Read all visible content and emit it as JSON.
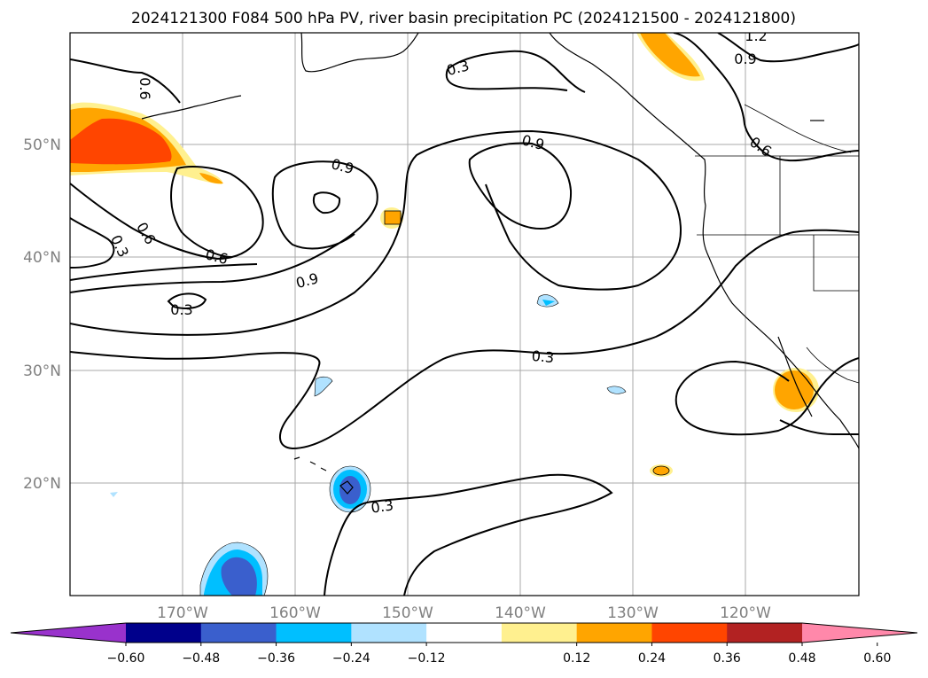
{
  "title": "2024121300 F084 500 hPa PV, river basin precipitation PC (2024121500 - 2024121800)",
  "lon_ticks": [
    "170°W",
    "160°W",
    "150°W",
    "140°W",
    "130°W",
    "120°W"
  ],
  "lat_ticks": [
    "50°N",
    "40°N",
    "30°N",
    "20°N"
  ],
  "colorbar": {
    "labels": [
      "−0.60",
      "−0.48",
      "−0.36",
      "−0.24",
      "−0.12",
      "0.12",
      "0.24",
      "0.36",
      "0.48",
      "0.60"
    ],
    "colors": [
      "#9932cc",
      "#00008b",
      "#3a5fcd",
      "#00bfff",
      "#b0e2ff",
      "#ffffff",
      "#fff08f",
      "#ffa500",
      "#ff4500",
      "#b22222",
      "#ff88aa"
    ]
  },
  "contour_labels": [
    "1.2",
    "0.3",
    "0.9",
    "0.6",
    "0.9",
    "0.9",
    "0.6",
    "0.3",
    "0.6",
    "0.6",
    "0.9",
    "0.3",
    "0.3",
    "0.3"
  ]
}
